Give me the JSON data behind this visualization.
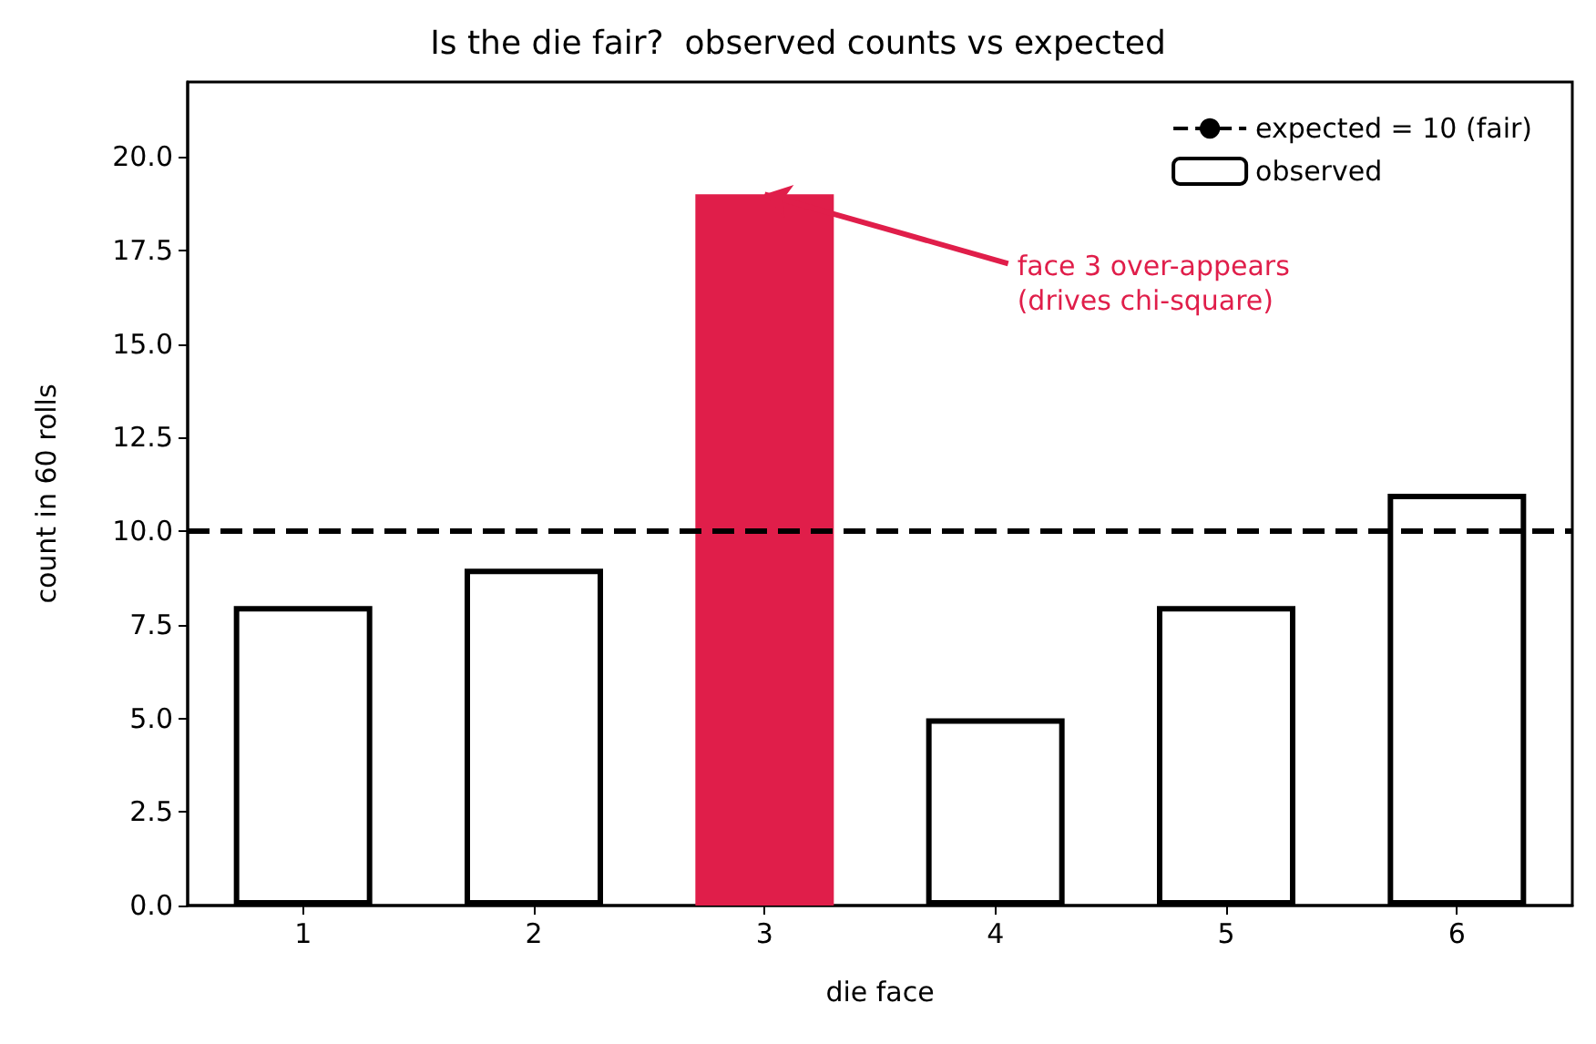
{
  "chart_data": {
    "type": "bar",
    "title": "Is the die fair?  observed counts vs expected",
    "xlabel": "die face",
    "ylabel": "count in 60 rolls",
    "categories": [
      "1",
      "2",
      "3",
      "4",
      "5",
      "6"
    ],
    "series": [
      {
        "name": "observed",
        "color": "#ffffff",
        "colors": [
          "#ffffff",
          "#ffffff",
          "#e01e4a",
          "#ffffff",
          "#ffffff",
          "#ffffff"
        ],
        "values": [
          8,
          9,
          19,
          5,
          8,
          11
        ]
      }
    ],
    "ylim": [
      0,
      22
    ],
    "yticks": [
      {
        "value": 0,
        "label": "0.0"
      },
      {
        "value": 2.5,
        "label": "2.5"
      },
      {
        "value": 5,
        "label": "5.0"
      },
      {
        "value": 7.5,
        "label": "7.5"
      },
      {
        "value": 10,
        "label": "10.0"
      },
      {
        "value": 12.5,
        "label": "12.5"
      },
      {
        "value": 15,
        "label": "15.0"
      },
      {
        "value": 17.5,
        "label": "17.5"
      },
      {
        "value": 20,
        "label": "20.0"
      }
    ],
    "ref_lines": [
      {
        "axis": "y",
        "value": 10,
        "label": "expected = 10 (fair)",
        "color": "#000000",
        "line_style": "dashed"
      }
    ],
    "annotations": [
      {
        "text": "face 3 over-appears\n(drives chi-square)",
        "x": "3",
        "y": 19
      }
    ],
    "legend": "top right",
    "grid": false
  }
}
